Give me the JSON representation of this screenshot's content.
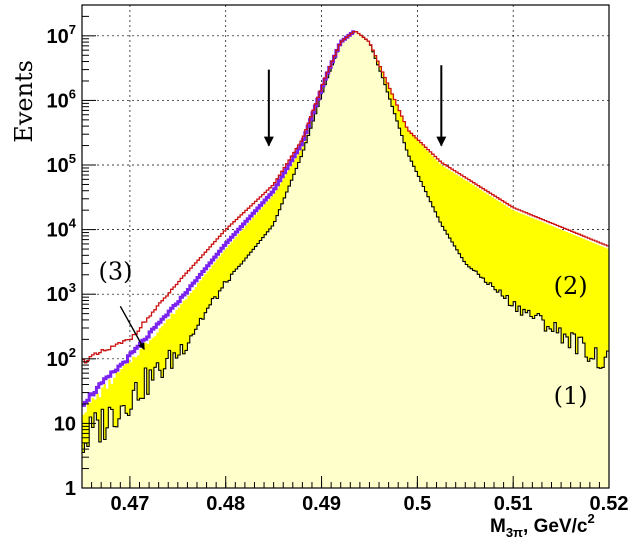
{
  "chart_data": {
    "type": "area",
    "xlabel": "M",
    "xlabel_sub": "3π",
    "xlabel_unit": ", GeV/c",
    "xlabel_sup": "2",
    "ylabel": "Events",
    "xlim": [
      0.465,
      0.52
    ],
    "ylim": [
      1,
      30000000
    ],
    "log_y": true,
    "grid": true,
    "x_ticks": [
      {
        "value": 0.47,
        "label": "0.47"
      },
      {
        "value": 0.48,
        "label": "0.48"
      },
      {
        "value": 0.49,
        "label": "0.49"
      },
      {
        "value": 0.5,
        "label": "0.5"
      },
      {
        "value": 0.51,
        "label": "0.51"
      },
      {
        "value": 0.52,
        "label": "0.52"
      }
    ],
    "y_ticks": [
      {
        "value": 1,
        "label": "1"
      },
      {
        "value": 10,
        "label": "10"
      },
      {
        "value": 100,
        "base": "10",
        "exp": "2"
      },
      {
        "value": 1000,
        "base": "10",
        "exp": "3"
      },
      {
        "value": 10000,
        "base": "10",
        "exp": "4"
      },
      {
        "value": 100000,
        "base": "10",
        "exp": "5"
      },
      {
        "value": 1000000,
        "base": "10",
        "exp": "6"
      },
      {
        "value": 10000000,
        "base": "10",
        "exp": "7"
      }
    ],
    "series": [
      {
        "key": "total",
        "color": "#cc1111",
        "points": [
          [
            0.465,
            90
          ],
          [
            0.47,
            200
          ],
          [
            0.475,
            1500
          ],
          [
            0.48,
            10000
          ],
          [
            0.485,
            50000
          ],
          [
            0.488,
            250000
          ],
          [
            0.4905,
            2500000
          ],
          [
            0.492,
            8000000
          ],
          [
            0.4935,
            12000000
          ],
          [
            0.495,
            8000000
          ],
          [
            0.4965,
            2500000
          ],
          [
            0.499,
            350000
          ],
          [
            0.5025,
            110000
          ],
          [
            0.51,
            22000
          ],
          [
            0.52,
            5500
          ]
        ]
      },
      {
        "key": "blue",
        "color": "#7a22ee",
        "points": [
          [
            0.465,
            20
          ],
          [
            0.47,
            110
          ],
          [
            0.475,
            750
          ],
          [
            0.48,
            6000
          ],
          [
            0.485,
            40000
          ],
          [
            0.488,
            220000
          ],
          [
            0.4905,
            2400000
          ],
          [
            0.492,
            8000000
          ],
          [
            0.4935,
            12000000
          ]
        ]
      },
      {
        "key": "yellow_top",
        "color": "#ffff00",
        "points": [
          [
            0.465,
            15
          ],
          [
            0.47,
            90
          ],
          [
            0.475,
            600
          ],
          [
            0.48,
            5000
          ],
          [
            0.485,
            35000
          ],
          [
            0.488,
            200000
          ],
          [
            0.4905,
            2400000
          ],
          [
            0.492,
            8000000
          ],
          [
            0.4935,
            12000000
          ],
          [
            0.495,
            8000000
          ],
          [
            0.4965,
            2500000
          ],
          [
            0.499,
            350000
          ],
          [
            0.5025,
            100000
          ],
          [
            0.51,
            20000
          ],
          [
            0.52,
            5000
          ]
        ]
      },
      {
        "key": "signal",
        "color": "#000000",
        "points": [
          [
            0.465,
            5
          ],
          [
            0.47,
            25
          ],
          [
            0.475,
            120
          ],
          [
            0.48,
            1500
          ],
          [
            0.485,
            12000
          ],
          [
            0.488,
            150000
          ],
          [
            0.4905,
            2000000
          ],
          [
            0.492,
            8000000
          ],
          [
            0.4935,
            12000000
          ],
          [
            0.495,
            8000000
          ],
          [
            0.4965,
            2000000
          ],
          [
            0.499,
            150000
          ],
          [
            0.5025,
            12000
          ],
          [
            0.505,
            3000
          ],
          [
            0.51,
            700
          ],
          [
            0.515,
            250
          ],
          [
            0.52,
            80
          ]
        ]
      }
    ],
    "arrows": [
      {
        "x": 0.4845,
        "y_top": 3000000,
        "y_bottom": 200000
      },
      {
        "x": 0.5025,
        "y_top": 3500000,
        "y_bottom": 200000
      }
    ],
    "region_labels": [
      {
        "text": "(1)",
        "x": 0.516,
        "y": 20
      },
      {
        "text": "(2)",
        "x": 0.516,
        "y": 1000
      },
      {
        "text": "(3)",
        "x": 0.4685,
        "y": 1700
      }
    ],
    "pointer": {
      "from": [
        0.469,
        650
      ],
      "to": [
        0.4715,
        140
      ]
    }
  }
}
